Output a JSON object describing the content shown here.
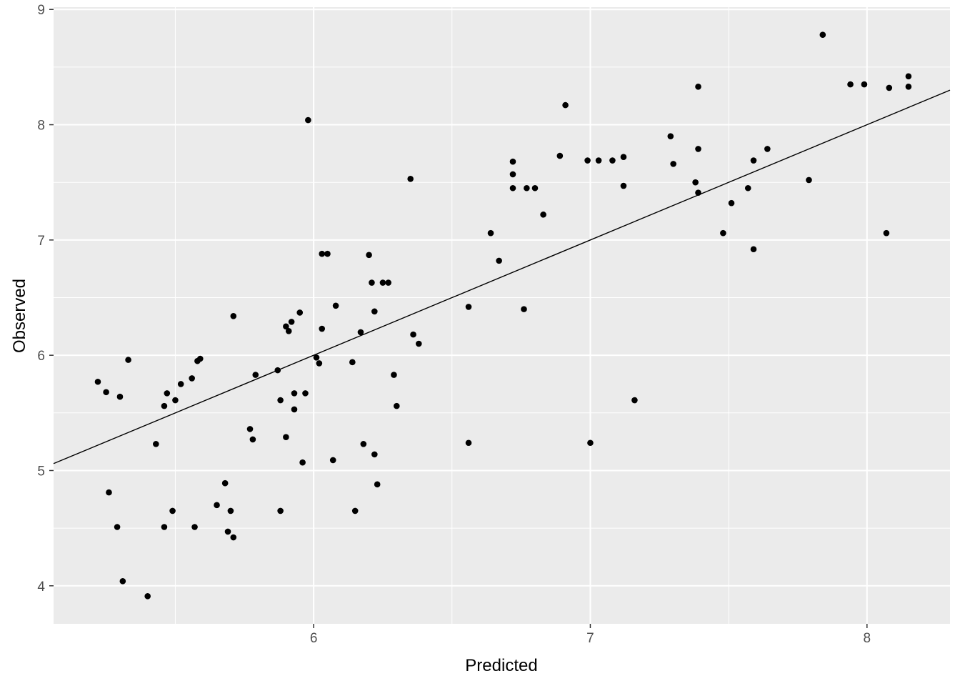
{
  "chart_data": {
    "type": "scatter",
    "title": "",
    "xlabel": "Predicted",
    "ylabel": "Observed",
    "xlim": [
      5.06,
      8.3
    ],
    "ylim": [
      3.67,
      9.02
    ],
    "x_ticks": [
      6,
      7,
      8
    ],
    "x_tick_labels": [
      "6",
      "7",
      "8"
    ],
    "y_ticks": [
      4,
      5,
      6,
      7,
      8,
      9
    ],
    "y_tick_labels": [
      "4",
      "5",
      "6",
      "7",
      "8",
      "9"
    ],
    "grid": true,
    "reference_line": {
      "x": [
        5.06,
        8.3
      ],
      "y": [
        5.06,
        8.3
      ]
    },
    "colors": {
      "panel": "#ebebeb",
      "grid": "#ffffff",
      "points": "#000000",
      "line": "#000000"
    },
    "points": [
      [
        5.22,
        5.77
      ],
      [
        5.25,
        5.68
      ],
      [
        5.26,
        4.81
      ],
      [
        5.29,
        4.51
      ],
      [
        5.3,
        5.64
      ],
      [
        5.31,
        4.04
      ],
      [
        5.33,
        5.96
      ],
      [
        5.4,
        3.91
      ],
      [
        5.43,
        5.23
      ],
      [
        5.46,
        4.51
      ],
      [
        5.46,
        5.56
      ],
      [
        5.47,
        5.67
      ],
      [
        5.49,
        4.65
      ],
      [
        5.5,
        5.61
      ],
      [
        5.52,
        5.75
      ],
      [
        5.56,
        5.8
      ],
      [
        5.57,
        4.51
      ],
      [
        5.58,
        5.95
      ],
      [
        5.59,
        5.97
      ],
      [
        5.65,
        4.7
      ],
      [
        5.68,
        4.89
      ],
      [
        5.69,
        4.47
      ],
      [
        5.7,
        4.65
      ],
      [
        5.71,
        4.42
      ],
      [
        5.71,
        6.34
      ],
      [
        5.77,
        5.36
      ],
      [
        5.78,
        5.27
      ],
      [
        5.79,
        5.83
      ],
      [
        5.87,
        5.87
      ],
      [
        5.88,
        4.65
      ],
      [
        5.88,
        5.61
      ],
      [
        5.9,
        5.29
      ],
      [
        5.9,
        6.25
      ],
      [
        5.91,
        6.21
      ],
      [
        5.92,
        6.29
      ],
      [
        5.93,
        5.67
      ],
      [
        5.93,
        5.53
      ],
      [
        5.95,
        6.37
      ],
      [
        5.96,
        5.07
      ],
      [
        5.97,
        5.67
      ],
      [
        5.98,
        8.04
      ],
      [
        6.01,
        5.98
      ],
      [
        6.02,
        5.93
      ],
      [
        6.03,
        6.88
      ],
      [
        6.03,
        6.23
      ],
      [
        6.05,
        6.88
      ],
      [
        6.07,
        5.09
      ],
      [
        6.08,
        6.43
      ],
      [
        6.14,
        5.94
      ],
      [
        6.15,
        4.65
      ],
      [
        6.17,
        6.2
      ],
      [
        6.18,
        5.23
      ],
      [
        6.2,
        6.87
      ],
      [
        6.21,
        6.63
      ],
      [
        6.22,
        6.38
      ],
      [
        6.22,
        5.14
      ],
      [
        6.23,
        4.88
      ],
      [
        6.25,
        6.63
      ],
      [
        6.27,
        6.63
      ],
      [
        6.29,
        5.83
      ],
      [
        6.3,
        5.56
      ],
      [
        6.35,
        7.53
      ],
      [
        6.36,
        6.18
      ],
      [
        6.38,
        6.1
      ],
      [
        6.56,
        6.42
      ],
      [
        6.56,
        5.24
      ],
      [
        6.64,
        7.06
      ],
      [
        6.67,
        6.82
      ],
      [
        6.72,
        7.68
      ],
      [
        6.72,
        7.57
      ],
      [
        6.72,
        7.45
      ],
      [
        6.76,
        6.4
      ],
      [
        6.77,
        7.45
      ],
      [
        6.8,
        7.45
      ],
      [
        6.83,
        7.22
      ],
      [
        6.89,
        7.73
      ],
      [
        6.91,
        8.17
      ],
      [
        6.99,
        7.69
      ],
      [
        7.0,
        5.24
      ],
      [
        7.03,
        7.69
      ],
      [
        7.08,
        7.69
      ],
      [
        7.12,
        7.72
      ],
      [
        7.12,
        7.47
      ],
      [
        7.16,
        5.61
      ],
      [
        7.29,
        7.9
      ],
      [
        7.3,
        7.66
      ],
      [
        7.38,
        7.5
      ],
      [
        7.39,
        7.79
      ],
      [
        7.39,
        8.33
      ],
      [
        7.39,
        7.41
      ],
      [
        7.48,
        7.06
      ],
      [
        7.51,
        7.32
      ],
      [
        7.57,
        7.45
      ],
      [
        7.59,
        6.92
      ],
      [
        7.59,
        7.69
      ],
      [
        7.64,
        7.79
      ],
      [
        7.79,
        7.52
      ],
      [
        7.84,
        8.78
      ],
      [
        7.94,
        8.35
      ],
      [
        7.99,
        8.35
      ],
      [
        8.07,
        7.06
      ],
      [
        8.08,
        8.32
      ],
      [
        8.15,
        8.42
      ],
      [
        8.15,
        8.33
      ]
    ]
  }
}
